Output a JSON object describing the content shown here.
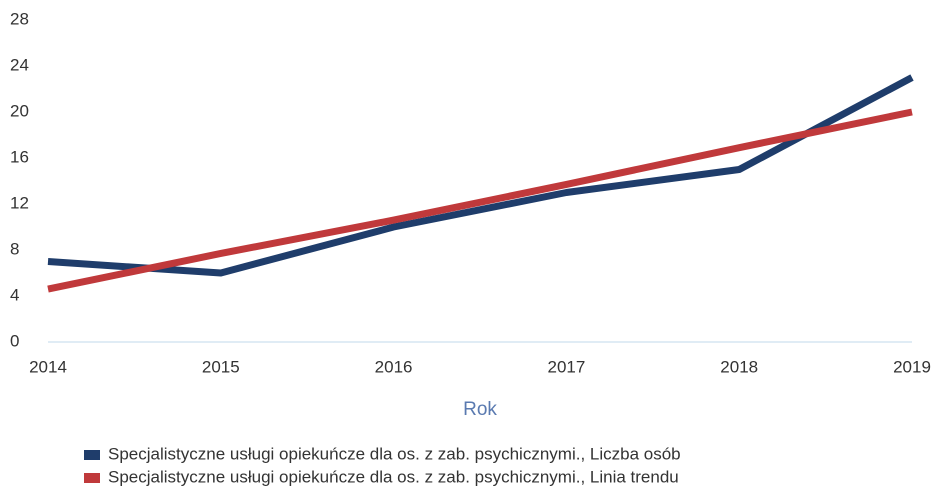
{
  "chart_data": {
    "type": "line",
    "x": [
      2014,
      2015,
      2016,
      2017,
      2018,
      2019
    ],
    "xlim": [
      2014,
      2019
    ],
    "xticks": [
      2014,
      2015,
      2016,
      2017,
      2018,
      2019
    ],
    "ylim": [
      0,
      28
    ],
    "yticks": [
      0,
      4,
      8,
      12,
      16,
      20,
      24,
      28
    ],
    "x_label": "Rok",
    "grid": false,
    "legend": "bottom",
    "series": [
      {
        "name": "Specjalistyczne usługi opiekuńcze dla os. z zab. psychicznymi., Liczba osób",
        "color": "#1f3d6b",
        "values": [
          7,
          6,
          10,
          13,
          15,
          23
        ]
      },
      {
        "name": "Specjalistyczne usługi opiekuńcze dla os. z zab. psychicznymi., Linia trendu",
        "color": "#c0393b",
        "values": [
          4.6,
          7.7,
          10.6,
          13.7,
          16.9,
          20
        ]
      }
    ]
  }
}
